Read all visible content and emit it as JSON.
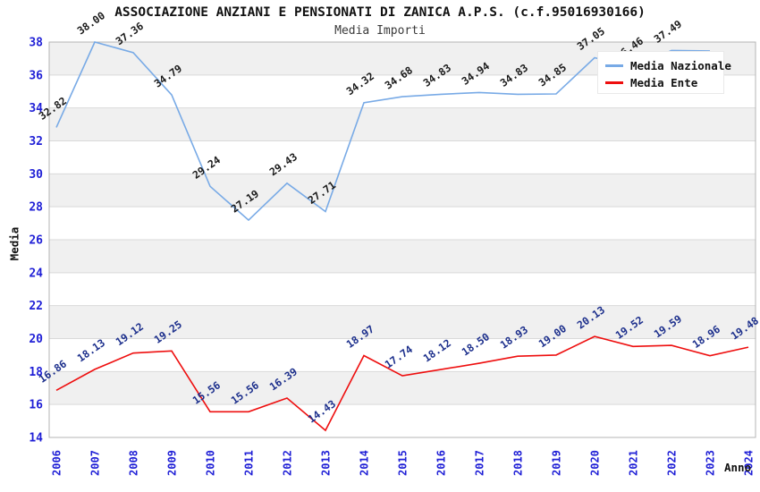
{
  "title": "ASSOCIAZIONE ANZIANI E PENSIONATI DI ZANICA A.P.S. (c.f.95016930166)",
  "subtitle": "Media Importi",
  "colors": {
    "nazionale_line": "#78aae6",
    "ente_line": "#ee0e0e",
    "nazionale_label": "#1a1a1a",
    "ente_label": "#1c2f8c",
    "tick_label": "#1f1fd6",
    "band_gray": "#f0f0f0",
    "grid_line": "#d9d9d9",
    "plot_border": "#b4b4b4"
  },
  "legend": {
    "items": [
      {
        "label": "Media Nazionale",
        "color": "#78aae6"
      },
      {
        "label": "Media Ente",
        "color": "#ee0e0e"
      }
    ]
  },
  "chart_data": {
    "type": "line",
    "title": "ASSOCIAZIONE ANZIANI E PENSIONATI DI ZANICA A.P.S. (c.f.95016930166)",
    "subtitle": "Media Importi",
    "xlabel": "Anno",
    "ylabel": "Media",
    "x": [
      "2006",
      "2007",
      "2008",
      "2009",
      "2010",
      "2011",
      "2012",
      "2013",
      "2014",
      "2015",
      "2016",
      "2017",
      "2018",
      "2019",
      "2020",
      "2021",
      "2022",
      "2023",
      "2024"
    ],
    "ylim": [
      14,
      38
    ],
    "ytick_step": 2,
    "grid": "horizontal-bands",
    "legend_position": "top-right",
    "series": [
      {
        "name": "Media Nazionale",
        "color": "#78aae6",
        "label_color": "#1a1a1a",
        "values": [
          32.82,
          38.0,
          37.36,
          34.79,
          29.24,
          27.19,
          29.43,
          27.71,
          34.32,
          34.68,
          34.83,
          34.94,
          34.83,
          34.85,
          37.05,
          36.46,
          37.49,
          37.46,
          null
        ],
        "labels": [
          "32.82",
          "38.00",
          "37.36",
          "34.79",
          "29.24",
          "27.19",
          "29.43",
          "27.71",
          "34.32",
          "34.68",
          "34.83",
          "34.94",
          "34.83",
          "34.85",
          "37.05",
          "36.46",
          "37.49",
          null,
          null
        ]
      },
      {
        "name": "Media Ente",
        "color": "#ee0e0e",
        "label_color": "#1c2f8c",
        "values": [
          16.86,
          18.13,
          19.12,
          19.25,
          15.56,
          15.56,
          16.39,
          14.43,
          18.97,
          17.74,
          18.12,
          18.5,
          18.93,
          19.0,
          20.13,
          19.52,
          19.59,
          18.96,
          19.48
        ],
        "labels": [
          "16.86",
          "18.13",
          "19.12",
          "19.25",
          "15.56",
          "15.56",
          "16.39",
          "14.43",
          "18.97",
          "17.74",
          "18.12",
          "18.50",
          "18.93",
          "19.00",
          "20.13",
          "19.52",
          "19.59",
          "18.96",
          "19.48"
        ]
      }
    ]
  }
}
